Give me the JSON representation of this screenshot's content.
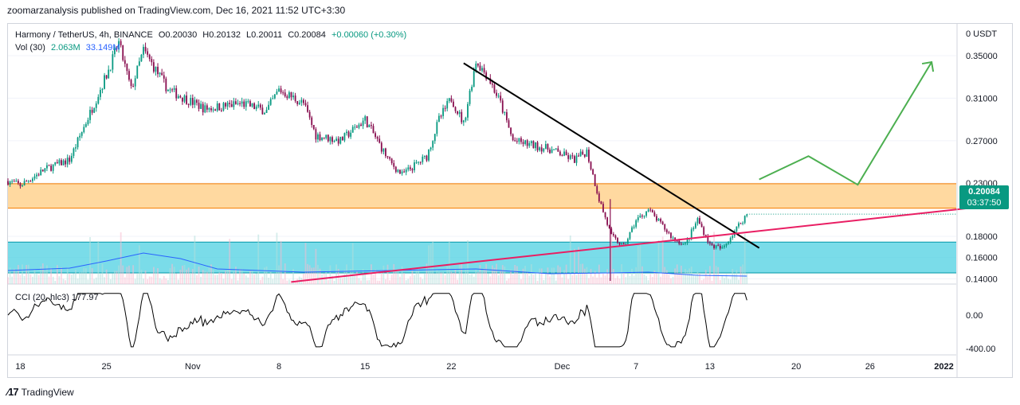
{
  "header": {
    "publisher_line": "zoomarzanalysis published on TradingView.com, Dec 16, 2021 11:52 UTC+3:30"
  },
  "legend": {
    "symbol": "Harmony / TetherUS, 4h, BINANCE",
    "open": "O0.20030",
    "high": "H0.20132",
    "low": "L0.20011",
    "close": "C0.20084",
    "change": "+0.00060 (+0.30%)",
    "vol_label": "Vol (30)",
    "vol_value": "2.063M",
    "vol_ma": "33.149M"
  },
  "cci_legend": {
    "label": "CCI (20, hlc3)",
    "value": "177.97"
  },
  "price_axis": {
    "currency": "USDT",
    "ticks": [
      "0.35000",
      "0.31000",
      "0.27000",
      "0.23000",
      "0.18000",
      "0.16000",
      "0.14000"
    ]
  },
  "cci_axis": {
    "ticks": [
      "0.00",
      "-400.00"
    ]
  },
  "time_axis": {
    "ticks": [
      "18",
      "25",
      "Nov",
      "8",
      "15",
      "22",
      "Dec",
      "7",
      "13",
      "20",
      "26",
      "2022"
    ]
  },
  "last_price": {
    "price": "0.20084",
    "countdown": "03:37:50"
  },
  "footer": {
    "brand": "TradingView"
  },
  "colors": {
    "up": "#089981",
    "down": "#880e4f",
    "resistance_zone": "#ffcc80",
    "support_zone": "#4dd0e1",
    "trendline_down": "#000000",
    "trendline_up": "#e91e63",
    "projection": "#4caf50",
    "vol_ma": "#2962ff"
  },
  "chart_data": {
    "type": "candlestick",
    "title": "Harmony / TetherUS, 4h, BINANCE",
    "x_range": [
      "2021-10-17",
      "2022-01-02"
    ],
    "y_range": [
      0.135,
      0.38
    ],
    "close_path": [
      [
        "2021-10-17",
        0.232
      ],
      [
        "2021-10-18",
        0.228
      ],
      [
        "2021-10-20",
        0.243
      ],
      [
        "2021-10-22",
        0.252
      ],
      [
        "2021-10-24",
        0.305
      ],
      [
        "2021-10-25",
        0.332
      ],
      [
        "2021-10-26",
        0.362
      ],
      [
        "2021-10-27",
        0.318
      ],
      [
        "2021-10-28",
        0.355
      ],
      [
        "2021-10-30",
        0.318
      ],
      [
        "2021-11-02",
        0.3
      ],
      [
        "2021-11-05",
        0.305
      ],
      [
        "2021-11-07",
        0.298
      ],
      [
        "2021-11-08",
        0.318
      ],
      [
        "2021-11-10",
        0.305
      ],
      [
        "2021-11-11",
        0.275
      ],
      [
        "2021-11-13",
        0.27
      ],
      [
        "2021-11-15",
        0.29
      ],
      [
        "2021-11-17",
        0.25
      ],
      [
        "2021-11-18",
        0.238
      ],
      [
        "2021-11-20",
        0.255
      ],
      [
        "2021-11-21",
        0.29
      ],
      [
        "2021-11-22",
        0.31
      ],
      [
        "2021-11-23",
        0.286
      ],
      [
        "2021-11-24",
        0.345
      ],
      [
        "2021-11-25",
        0.33
      ],
      [
        "2021-11-26",
        0.305
      ],
      [
        "2021-11-27",
        0.27
      ],
      [
        "2021-11-30",
        0.262
      ],
      [
        "2021-12-02",
        0.252
      ],
      [
        "2021-12-03",
        0.26
      ],
      [
        "2021-12-04",
        0.215
      ],
      [
        "2021-12-05",
        0.18
      ],
      [
        "2021-12-06",
        0.17
      ],
      [
        "2021-12-07",
        0.195
      ],
      [
        "2021-12-08",
        0.205
      ],
      [
        "2021-12-10",
        0.178
      ],
      [
        "2021-12-11",
        0.172
      ],
      [
        "2021-12-12",
        0.196
      ],
      [
        "2021-12-13",
        0.172
      ],
      [
        "2021-12-14",
        0.168
      ],
      [
        "2021-12-15",
        0.185
      ],
      [
        "2021-12-16",
        0.2008
      ]
    ],
    "spike_low": [
      "2021-12-04",
      0.138
    ],
    "zones": [
      {
        "name": "resistance",
        "from": 0.2065,
        "to": 0.2295
      },
      {
        "name": "support",
        "from": 0.1455,
        "to": 0.1745
      }
    ],
    "trendlines": [
      {
        "from": [
          "2021-11-23",
          0.343
        ],
        "to": [
          "2021-12-17",
          0.169
        ]
      },
      {
        "from": [
          "2021-11-09",
          0.137
        ],
        "to": [
          "2022-01-03",
          0.2065
        ]
      }
    ],
    "projection": [
      [
        "2021-12-17",
        0.2335
      ],
      [
        "2021-12-21",
        0.2555
      ],
      [
        "2021-12-25",
        0.2285
      ],
      [
        "2021-12-31",
        0.344
      ]
    ],
    "last_price": 0.20084,
    "volume_ma": 33.149,
    "cci": {
      "last": 177.97,
      "ticks": [
        0,
        -400
      ]
    }
  }
}
